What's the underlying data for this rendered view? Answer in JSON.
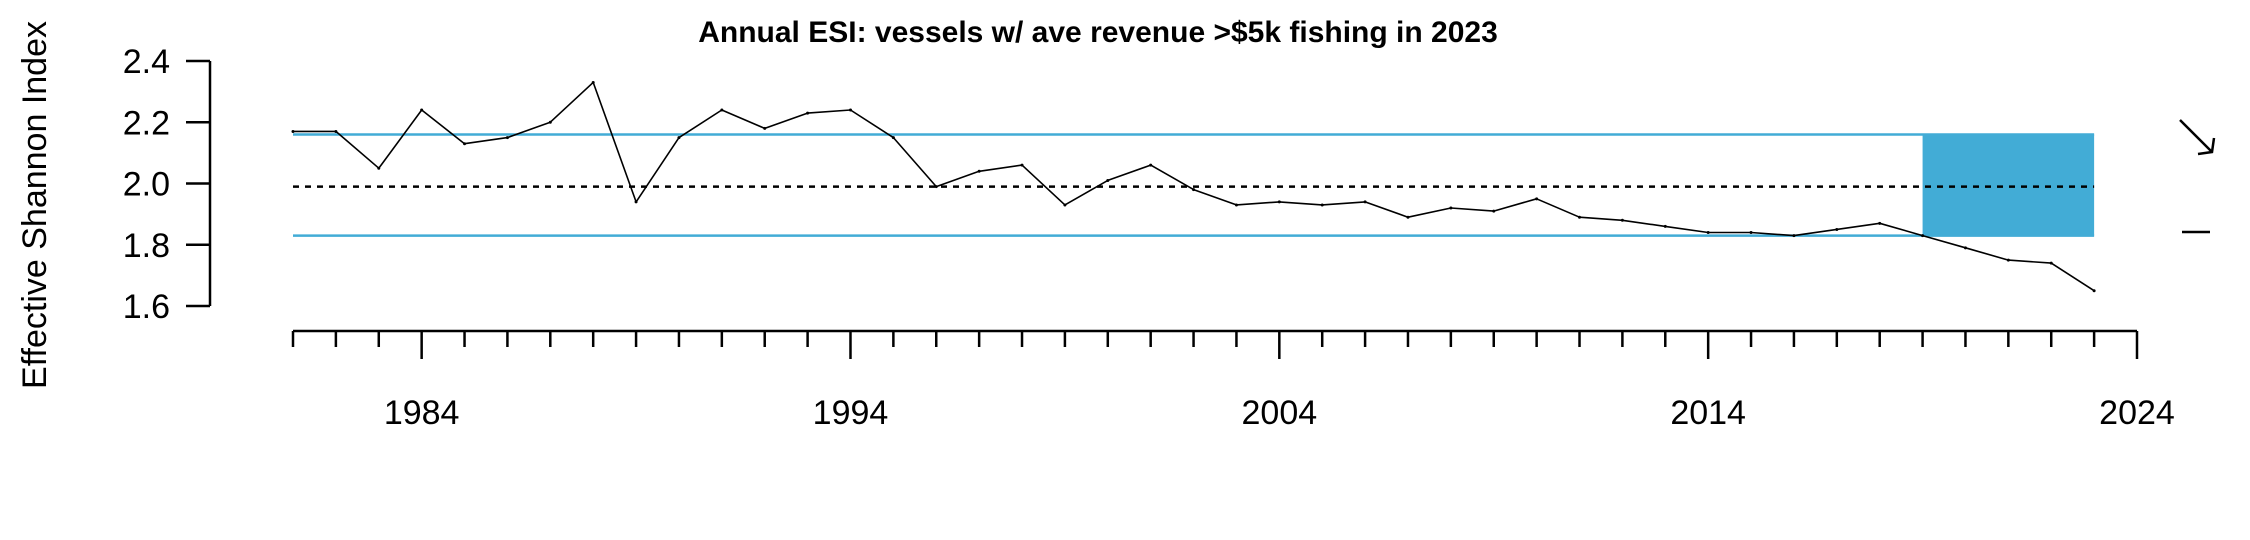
{
  "chart_data": {
    "type": "line",
    "title": "Annual ESI: vessels w/ ave revenue >$5k fishing in 2023",
    "xlabel": "",
    "ylabel": "Effective Shannon Index",
    "x_tick_labels": [
      "1984",
      "1994",
      "2004",
      "2014",
      "2024"
    ],
    "y_tick_labels": [
      "1.6",
      "1.8",
      "2.0",
      "2.2",
      "2.4"
    ],
    "xlim": [
      1981,
      2024
    ],
    "ylim": [
      1.6,
      2.4
    ],
    "x": [
      1981,
      1982,
      1983,
      1984,
      1985,
      1986,
      1987,
      1988,
      1989,
      1990,
      1991,
      1992,
      1993,
      1994,
      1995,
      1996,
      1997,
      1998,
      1999,
      2000,
      2001,
      2002,
      2003,
      2004,
      2005,
      2006,
      2007,
      2008,
      2009,
      2010,
      2011,
      2012,
      2013,
      2014,
      2015,
      2016,
      2017,
      2018,
      2019,
      2020,
      2021,
      2022,
      2023
    ],
    "y": [
      2.17,
      2.17,
      2.05,
      2.24,
      2.13,
      2.15,
      2.2,
      2.33,
      1.94,
      2.15,
      2.24,
      2.18,
      2.23,
      2.24,
      2.15,
      1.99,
      2.04,
      2.06,
      1.93,
      2.01,
      2.06,
      1.98,
      1.93,
      1.94,
      1.93,
      1.94,
      1.89,
      1.92,
      1.91,
      1.95,
      1.89,
      1.88,
      1.86,
      1.84,
      1.84,
      1.83,
      1.85,
      1.87,
      1.83,
      1.79,
      1.75,
      1.74,
      1.65
    ],
    "mean": 1.99,
    "upper_sd": 2.16,
    "lower_sd": 1.83,
    "highlight_x_range": [
      2019,
      2023
    ],
    "grid": false,
    "legend": "none",
    "colors": {
      "line": "#000000",
      "sd_lines": "#42ACD6",
      "highlight": "#42ACD6",
      "mean": "#000000"
    },
    "trend_indicator": "down-arrow-icon",
    "mean_indicator": "dash-icon"
  }
}
